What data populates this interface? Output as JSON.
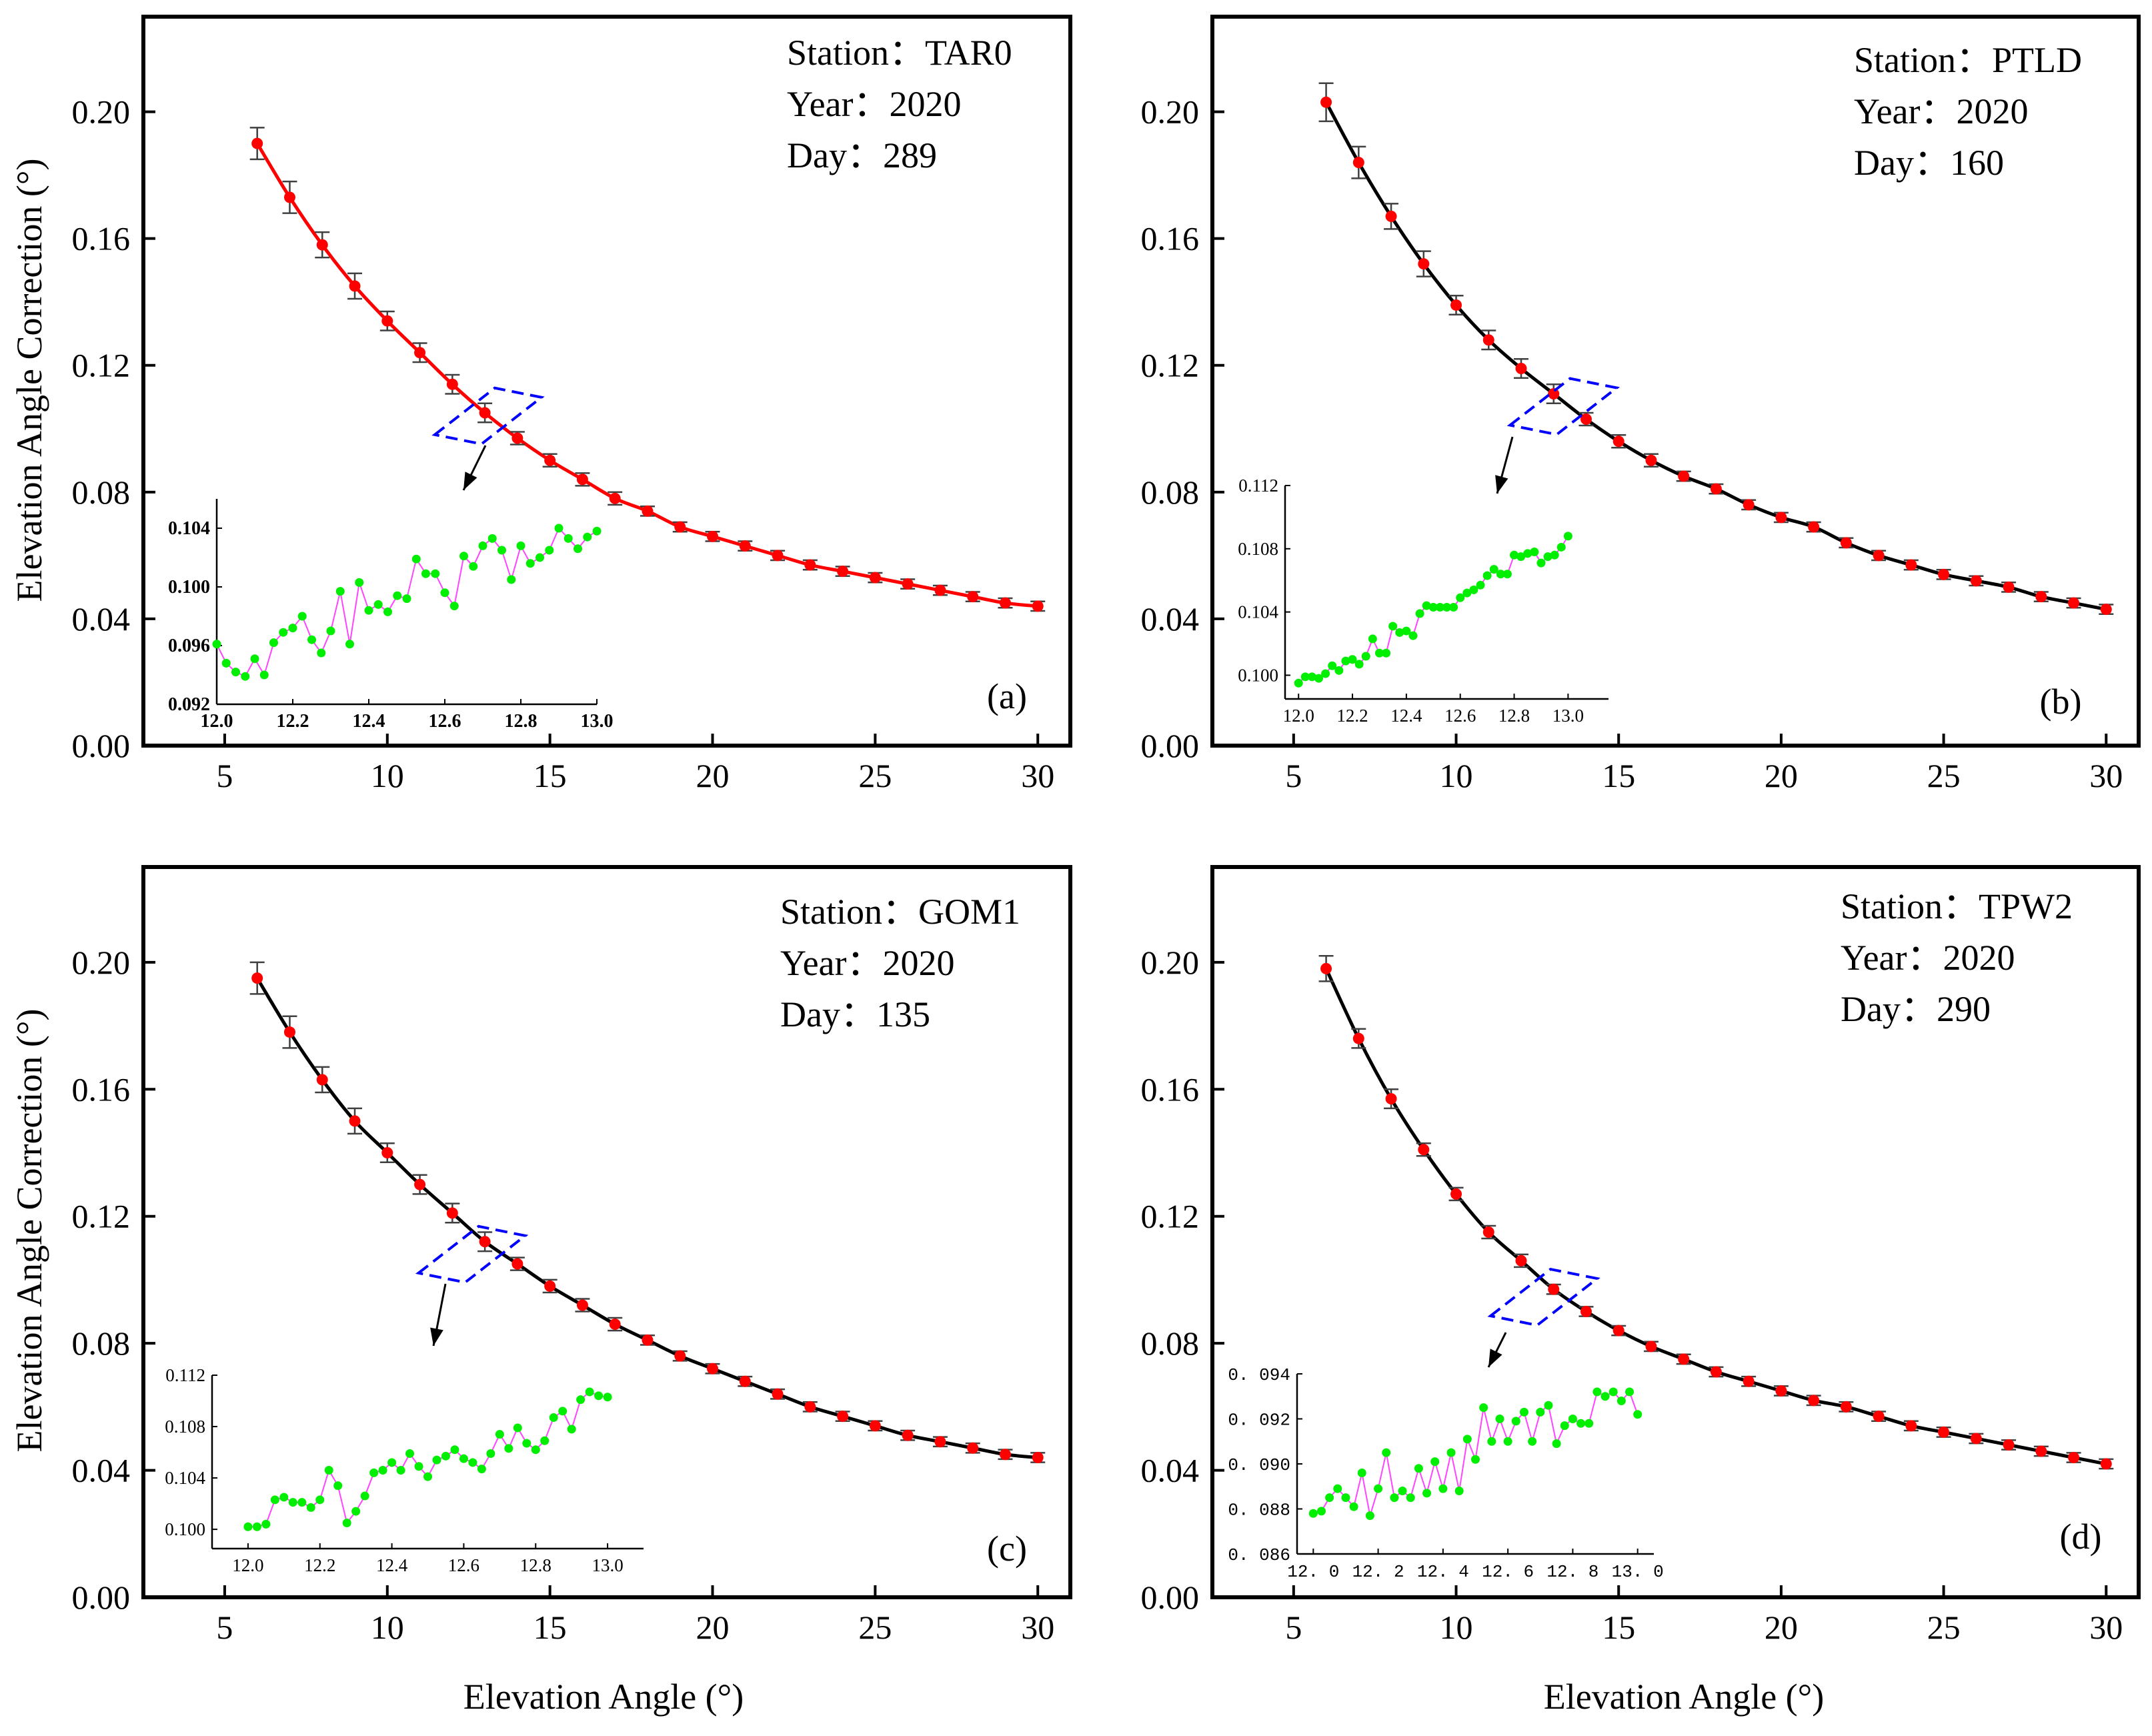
{
  "figure": {
    "y_axis_title": "Elevation Angle Correction (°)",
    "x_axis_title": "Elevation Angle (°)"
  },
  "colors": {
    "axis": "#000000",
    "error_bar": "#404040",
    "marker": "#ff0000",
    "fit_red": "#ff0000",
    "fit_black": "#000000",
    "highlight_box": "#0000ff",
    "inset_marker": "#00ee00",
    "inset_line": "#ff44ff"
  },
  "chart_data": [
    {
      "type": "line",
      "panel_label": "(a)",
      "station_line": "Station：TAR0",
      "year_line": "Year：2020",
      "day_line": "Day：289",
      "fit_color": "red",
      "xlim": [
        2.5,
        31
      ],
      "ylim": [
        0,
        0.23
      ],
      "xticks": [
        5,
        10,
        15,
        20,
        25,
        30
      ],
      "xtick_labels": [
        "5",
        "10",
        "15",
        "20",
        "25",
        "30"
      ],
      "yticks": [
        0.0,
        0.04,
        0.08,
        0.12,
        0.16,
        0.2
      ],
      "ytick_labels": [
        "0.00",
        "0.04",
        "0.08",
        "0.12",
        "0.16",
        "0.20"
      ],
      "x": [
        6,
        7,
        8,
        9,
        10,
        11,
        12,
        13,
        14,
        15,
        16,
        17,
        18,
        19,
        20,
        21,
        22,
        23,
        24,
        25,
        26,
        27,
        28,
        29,
        30
      ],
      "y": [
        0.19,
        0.173,
        0.158,
        0.145,
        0.134,
        0.124,
        0.114,
        0.105,
        0.097,
        0.09,
        0.084,
        0.078,
        0.074,
        0.069,
        0.066,
        0.063,
        0.06,
        0.057,
        0.055,
        0.053,
        0.051,
        0.049,
        0.047,
        0.045,
        0.044
      ],
      "err": [
        0.005,
        0.005,
        0.004,
        0.004,
        0.003,
        0.003,
        0.003,
        0.003,
        0.002,
        0.002,
        0.002,
        0.002,
        0.0015,
        0.0015,
        0.0015,
        0.0015,
        0.0015,
        0.0015,
        0.0015,
        0.0015,
        0.0015,
        0.0015,
        0.0015,
        0.0015,
        0.0015
      ],
      "inset": {
        "xlim": [
          12.0,
          13.0
        ],
        "ylim": [
          0.092,
          0.106
        ],
        "xticks": [
          12.0,
          12.2,
          12.4,
          12.6,
          12.8,
          13.0
        ],
        "xtick_labels": [
          "12.0",
          "12.2",
          "12.4",
          "12.6",
          "12.8",
          "13.0"
        ],
        "yticks": [
          0.092,
          0.096,
          0.1,
          0.104
        ],
        "ytick_labels": [
          "0.092",
          "0.096",
          "0.100",
          "0.104"
        ],
        "x": [
          12.0,
          12.025,
          12.05,
          12.075,
          12.1,
          12.125,
          12.15,
          12.175,
          12.2,
          12.225,
          12.25,
          12.275,
          12.3,
          12.325,
          12.35,
          12.375,
          12.4,
          12.425,
          12.45,
          12.475,
          12.5,
          12.525,
          12.55,
          12.575,
          12.6,
          12.625,
          12.65,
          12.675,
          12.7,
          12.725,
          12.75,
          12.775,
          12.8,
          12.825,
          12.85,
          12.875,
          12.9,
          12.925,
          12.95,
          12.975,
          13.0
        ],
        "y": [
          0.0961,
          0.0948,
          0.0942,
          0.0939,
          0.0951,
          0.094,
          0.0962,
          0.0969,
          0.0972,
          0.098,
          0.0964,
          0.0955,
          0.097,
          0.0997,
          0.0961,
          0.1003,
          0.0984,
          0.0988,
          0.0983,
          0.0994,
          0.0992,
          0.1019,
          0.1009,
          0.1009,
          0.0996,
          0.0987,
          0.1021,
          0.1014,
          0.1028,
          0.1033,
          0.1025,
          0.1005,
          0.1028,
          0.1016,
          0.102,
          0.1025,
          0.104,
          0.1033,
          0.1026,
          0.1034,
          0.1038
        ]
      }
    },
    {
      "type": "line",
      "panel_label": "(b)",
      "station_line": "Station：PTLD",
      "year_line": "Year：2020",
      "day_line": "Day：160",
      "fit_color": "black",
      "xlim": [
        2.5,
        31
      ],
      "ylim": [
        0,
        0.23
      ],
      "xticks": [
        5,
        10,
        15,
        20,
        25,
        30
      ],
      "xtick_labels": [
        "5",
        "10",
        "15",
        "20",
        "25",
        "30"
      ],
      "yticks": [
        0.0,
        0.04,
        0.08,
        0.12,
        0.16,
        0.2
      ],
      "ytick_labels": [
        "0.00",
        "0.04",
        "0.08",
        "0.12",
        "0.16",
        "0.20"
      ],
      "x": [
        6,
        7,
        8,
        9,
        10,
        11,
        12,
        13,
        14,
        15,
        16,
        17,
        18,
        19,
        20,
        21,
        22,
        23,
        24,
        25,
        26,
        27,
        28,
        29,
        30
      ],
      "y": [
        0.203,
        0.184,
        0.167,
        0.152,
        0.139,
        0.128,
        0.119,
        0.111,
        0.103,
        0.096,
        0.09,
        0.085,
        0.081,
        0.076,
        0.072,
        0.069,
        0.064,
        0.06,
        0.057,
        0.054,
        0.052,
        0.05,
        0.047,
        0.045,
        0.043
      ],
      "err": [
        0.006,
        0.005,
        0.004,
        0.004,
        0.003,
        0.003,
        0.003,
        0.003,
        0.002,
        0.002,
        0.002,
        0.0015,
        0.0015,
        0.0015,
        0.0015,
        0.0015,
        0.0015,
        0.0015,
        0.0015,
        0.0015,
        0.0015,
        0.0015,
        0.0015,
        0.0015,
        0.0015
      ],
      "inset": {
        "xlim": [
          11.95,
          13.15
        ],
        "ylim": [
          0.0985,
          0.112
        ],
        "xticks": [
          12.0,
          12.2,
          12.4,
          12.6,
          12.8,
          13.0
        ],
        "xtick_labels": [
          "12.0",
          "12.2",
          "12.4",
          "12.6",
          "12.8",
          "13.0"
        ],
        "yticks": [
          0.1,
          0.104,
          0.108,
          0.112
        ],
        "ytick_labels": [
          "0.100",
          "0.104",
          "0.108",
          "0.112"
        ],
        "x": [
          12.0,
          12.025,
          12.05,
          12.075,
          12.1,
          12.125,
          12.15,
          12.175,
          12.2,
          12.225,
          12.25,
          12.275,
          12.3,
          12.325,
          12.35,
          12.375,
          12.4,
          12.425,
          12.45,
          12.475,
          12.5,
          12.525,
          12.55,
          12.575,
          12.6,
          12.625,
          12.65,
          12.675,
          12.7,
          12.725,
          12.75,
          12.775,
          12.8,
          12.825,
          12.85,
          12.875,
          12.9,
          12.925,
          12.95,
          12.975,
          13.0
        ],
        "y": [
          0.0995,
          0.0999,
          0.0999,
          0.0998,
          0.1001,
          0.1006,
          0.1003,
          0.1009,
          0.101,
          0.1007,
          0.1012,
          0.1023,
          0.1014,
          0.1014,
          0.1031,
          0.1027,
          0.1028,
          0.1025,
          0.1039,
          0.1044,
          0.1043,
          0.1043,
          0.1043,
          0.1043,
          0.1049,
          0.1052,
          0.1054,
          0.1057,
          0.1063,
          0.1067,
          0.1064,
          0.1064,
          0.1076,
          0.1075,
          0.1077,
          0.1078,
          0.1071,
          0.1075,
          0.1076,
          0.1081,
          0.1088
        ]
      }
    },
    {
      "type": "line",
      "panel_label": "(c)",
      "station_line": "Station：GOM1",
      "year_line": "Year：2020",
      "day_line": "Day：135",
      "fit_color": "black",
      "xlim": [
        2.5,
        31
      ],
      "ylim": [
        0,
        0.23
      ],
      "xticks": [
        5,
        10,
        15,
        20,
        25,
        30
      ],
      "xtick_labels": [
        "5",
        "10",
        "15",
        "20",
        "25",
        "30"
      ],
      "yticks": [
        0.0,
        0.04,
        0.08,
        0.12,
        0.16,
        0.2
      ],
      "ytick_labels": [
        "0.00",
        "0.04",
        "0.08",
        "0.12",
        "0.16",
        "0.20"
      ],
      "x": [
        6,
        7,
        8,
        9,
        10,
        11,
        12,
        13,
        14,
        15,
        16,
        17,
        18,
        19,
        20,
        21,
        22,
        23,
        24,
        25,
        26,
        27,
        28,
        29,
        30
      ],
      "y": [
        0.195,
        0.178,
        0.163,
        0.15,
        0.14,
        0.13,
        0.121,
        0.112,
        0.105,
        0.098,
        0.092,
        0.086,
        0.081,
        0.076,
        0.072,
        0.068,
        0.064,
        0.06,
        0.057,
        0.054,
        0.051,
        0.049,
        0.047,
        0.045,
        0.044
      ],
      "err": [
        0.005,
        0.005,
        0.004,
        0.004,
        0.003,
        0.003,
        0.003,
        0.003,
        0.002,
        0.002,
        0.002,
        0.002,
        0.0015,
        0.0015,
        0.0015,
        0.0015,
        0.0015,
        0.0015,
        0.0015,
        0.0015,
        0.0015,
        0.0015,
        0.0015,
        0.0015,
        0.0015
      ],
      "inset": {
        "xlim": [
          11.9,
          13.1
        ],
        "ylim": [
          0.0985,
          0.112
        ],
        "xticks": [
          12.0,
          12.2,
          12.4,
          12.6,
          12.8,
          13.0
        ],
        "xtick_labels": [
          "12.0",
          "12.2",
          "12.4",
          "12.6",
          "12.8",
          "13.0"
        ],
        "yticks": [
          0.1,
          0.104,
          0.108,
          0.112
        ],
        "ytick_labels": [
          "0.100",
          "0.104",
          "0.108",
          "0.112"
        ],
        "x": [
          12.0,
          12.025,
          12.05,
          12.075,
          12.1,
          12.125,
          12.15,
          12.175,
          12.2,
          12.225,
          12.25,
          12.275,
          12.3,
          12.325,
          12.35,
          12.375,
          12.4,
          12.425,
          12.45,
          12.475,
          12.5,
          12.525,
          12.55,
          12.575,
          12.6,
          12.625,
          12.65,
          12.675,
          12.7,
          12.725,
          12.75,
          12.775,
          12.8,
          12.825,
          12.85,
          12.875,
          12.9,
          12.925,
          12.95,
          12.975,
          13.0
        ],
        "y": [
          0.1002,
          0.1002,
          0.1004,
          0.1023,
          0.1025,
          0.1021,
          0.1021,
          0.1017,
          0.1023,
          0.1046,
          0.1034,
          0.1005,
          0.1014,
          0.1026,
          0.1044,
          0.1046,
          0.1052,
          0.1046,
          0.1059,
          0.1049,
          0.1041,
          0.1054,
          0.1057,
          0.1062,
          0.1055,
          0.1052,
          0.1047,
          0.1059,
          0.1074,
          0.1063,
          0.1079,
          0.1067,
          0.1062,
          0.1069,
          0.1087,
          0.1092,
          0.1078,
          0.1101,
          0.1107,
          0.1104,
          0.1103
        ]
      }
    },
    {
      "type": "line",
      "panel_label": "(d)",
      "station_line": "Station：TPW2",
      "year_line": "Year：2020",
      "day_line": "Day：290",
      "fit_color": "black",
      "xlim": [
        2.5,
        31
      ],
      "ylim": [
        0,
        0.23
      ],
      "xticks": [
        5,
        10,
        15,
        20,
        25,
        30
      ],
      "xtick_labels": [
        "5",
        "10",
        "15",
        "20",
        "25",
        "30"
      ],
      "yticks": [
        0.0,
        0.04,
        0.08,
        0.12,
        0.16,
        0.2
      ],
      "ytick_labels": [
        "0.00",
        "0.04",
        "0.08",
        "0.12",
        "0.16",
        "0.20"
      ],
      "x": [
        6,
        7,
        8,
        9,
        10,
        11,
        12,
        13,
        14,
        15,
        16,
        17,
        18,
        19,
        20,
        21,
        22,
        23,
        24,
        25,
        26,
        27,
        28,
        29,
        30
      ],
      "y": [
        0.198,
        0.176,
        0.157,
        0.141,
        0.127,
        0.115,
        0.106,
        0.097,
        0.09,
        0.084,
        0.079,
        0.075,
        0.071,
        0.068,
        0.065,
        0.062,
        0.06,
        0.057,
        0.054,
        0.052,
        0.05,
        0.048,
        0.046,
        0.044,
        0.042
      ],
      "err": [
        0.004,
        0.003,
        0.003,
        0.002,
        0.002,
        0.002,
        0.002,
        0.0015,
        0.0015,
        0.0015,
        0.0015,
        0.0015,
        0.0015,
        0.0015,
        0.0015,
        0.0015,
        0.0015,
        0.0015,
        0.0015,
        0.0015,
        0.0015,
        0.0015,
        0.0015,
        0.0015,
        0.0015
      ],
      "inset": {
        "xlim": [
          11.95,
          13.05
        ],
        "ylim": [
          0.086,
          0.094
        ],
        "xticks": [
          12.0,
          12.2,
          12.4,
          12.6,
          12.8,
          13.0
        ],
        "xtick_labels": [
          "12. 0",
          "12. 2",
          "12. 4",
          "12. 6",
          "12. 8",
          "13. 0"
        ],
        "yticks": [
          0.086,
          0.088,
          0.09,
          0.092,
          0.094
        ],
        "ytick_labels": [
          "0. 086",
          "0. 088",
          "0. 090",
          "0. 092",
          "0. 094"
        ],
        "x": [
          12.0,
          12.025,
          12.05,
          12.075,
          12.1,
          12.125,
          12.15,
          12.175,
          12.2,
          12.225,
          12.25,
          12.275,
          12.3,
          12.325,
          12.35,
          12.375,
          12.4,
          12.425,
          12.45,
          12.475,
          12.5,
          12.525,
          12.55,
          12.575,
          12.6,
          12.625,
          12.65,
          12.675,
          12.7,
          12.725,
          12.75,
          12.775,
          12.8,
          12.825,
          12.85,
          12.875,
          12.9,
          12.925,
          12.95,
          12.975,
          13.0
        ],
        "y": [
          0.0878,
          0.0879,
          0.0885,
          0.0889,
          0.0885,
          0.0881,
          0.0896,
          0.0877,
          0.0889,
          0.0905,
          0.0885,
          0.0888,
          0.0885,
          0.0898,
          0.0887,
          0.0901,
          0.0889,
          0.0905,
          0.0888,
          0.0911,
          0.0902,
          0.0925,
          0.091,
          0.092,
          0.091,
          0.0919,
          0.0923,
          0.091,
          0.0923,
          0.0926,
          0.0909,
          0.0917,
          0.092,
          0.0918,
          0.0918,
          0.0932,
          0.093,
          0.0932,
          0.0928,
          0.0932,
          0.0922
        ]
      }
    }
  ]
}
